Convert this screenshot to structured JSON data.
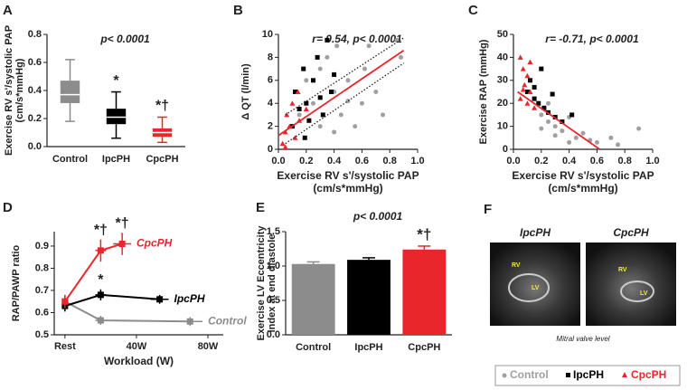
{
  "chart_data": [
    {
      "type": "box",
      "panel_label": "A",
      "annotation": "p< 0.0001",
      "y_label": [
        "Exercise RV s'/systolic PAP",
        "(cm/s*mmHg)"
      ],
      "categories": [
        "Control",
        "IpcPH",
        "CpcPH"
      ],
      "ylim": [
        0,
        0.8
      ],
      "yticks": [
        {
          "value": 0,
          "label": "0.0"
        },
        0.2,
        0.4,
        0.6,
        0.8
      ],
      "series": [
        {
          "name": "Control",
          "color": "#8c8c8c",
          "whisker_low": 0.18,
          "q1": 0.31,
          "median": 0.37,
          "q3": 0.47,
          "whisker_high": 0.62
        },
        {
          "name": "IpcPH",
          "color": "#000000",
          "whisker_low": 0.06,
          "q1": 0.16,
          "median": 0.21,
          "q3": 0.27,
          "whisker_high": 0.39,
          "significance": "*"
        },
        {
          "name": "CpcPH",
          "color": "#e8262b",
          "whisker_low": 0.03,
          "q1": 0.07,
          "median": 0.1,
          "q3": 0.13,
          "whisker_high": 0.21,
          "significance": "*†"
        }
      ]
    },
    {
      "type": "scatter",
      "panel_label": "B",
      "annotation": "r= 0.54, p< 0.0001",
      "y_label": [
        "Δ QT (l/min)"
      ],
      "x_label": [
        "Exercise RV s'/systolic PAP",
        "(cm/s*mmHg)"
      ],
      "xlim": [
        0,
        1
      ],
      "xticks": [
        {
          "value": 0,
          "label": "0.0"
        },
        0.2,
        0.4,
        0.6,
        0.8,
        {
          "value": 1,
          "label": "1.0"
        }
      ],
      "ylim": [
        0,
        10
      ],
      "yticks": [
        0,
        2,
        4,
        6,
        8,
        10
      ],
      "series": [
        {
          "name": "Control",
          "color": "#a0a0a0",
          "marker": "circle",
          "x": [
            0.15,
            0.2,
            0.25,
            0.3,
            0.35,
            0.4,
            0.42,
            0.45,
            0.5,
            0.55,
            0.6,
            0.62,
            0.7,
            0.75,
            0.85,
            0.88,
            0.3,
            0.4,
            0.5,
            0.65
          ],
          "values": [
            3,
            6,
            4,
            7,
            8,
            5,
            9,
            3,
            6,
            2,
            4,
            7,
            5,
            3,
            9.5,
            8,
            2,
            1.5,
            4.2,
            9
          ]
        },
        {
          "name": "IpcPH",
          "color": "#000000",
          "marker": "square",
          "x": [
            0.1,
            0.12,
            0.15,
            0.18,
            0.2,
            0.22,
            0.25,
            0.28,
            0.3,
            0.32,
            0.35,
            0.38,
            0.4,
            0.19
          ],
          "values": [
            2,
            5,
            3.5,
            7,
            4,
            2.5,
            6,
            8,
            4.5,
            3,
            9.5,
            5,
            6.5,
            1
          ]
        },
        {
          "name": "CpcPH",
          "color": "#e8262b",
          "marker": "triangle",
          "x": [
            0.03,
            0.05,
            0.06,
            0.08,
            0.1,
            0.12,
            0.14,
            0.15,
            0.05,
            0.2
          ],
          "values": [
            0.5,
            1.5,
            3,
            2,
            4,
            1,
            5,
            2.5,
            0.2,
            3.5
          ]
        }
      ],
      "fit": {
        "color": "#e8262b",
        "x": [
          0,
          0.9
        ],
        "values": [
          1.2,
          8.6
        ]
      },
      "ci": [
        {
          "x": [
            0.05,
            0.9
          ],
          "values": [
            3,
            9.7
          ]
        },
        {
          "x": [
            0.05,
            0.9
          ],
          "values": [
            0.5,
            7.5
          ]
        }
      ]
    },
    {
      "type": "scatter",
      "panel_label": "C",
      "annotation": "r= -0.71, p< 0.0001",
      "y_label": [
        "Exercise RAP (mmHg)"
      ],
      "x_label": [
        "Exercise RV s'/systolic PAP",
        "(cm/s*mmHg)"
      ],
      "xlim": [
        0,
        1
      ],
      "xticks": [
        {
          "value": 0,
          "label": "0.0"
        },
        0.2,
        0.4,
        0.6,
        0.8,
        {
          "value": 1,
          "label": "1.0"
        }
      ],
      "ylim": [
        0,
        50
      ],
      "yticks": [
        0,
        10,
        20,
        30,
        40,
        50
      ],
      "series": [
        {
          "name": "Control",
          "color": "#a0a0a0",
          "marker": "circle",
          "x": [
            0.2,
            0.25,
            0.3,
            0.35,
            0.4,
            0.45,
            0.5,
            0.55,
            0.6,
            0.7,
            0.75,
            0.9,
            0.3,
            0.4,
            0.25,
            0.2
          ],
          "values": [
            15,
            12,
            10,
            8,
            14,
            5,
            7,
            4,
            3,
            5,
            2,
            9,
            6,
            3,
            20,
            9
          ]
        },
        {
          "name": "IpcPH",
          "color": "#000000",
          "marker": "square",
          "x": [
            0.1,
            0.12,
            0.15,
            0.18,
            0.2,
            0.22,
            0.25,
            0.28,
            0.3,
            0.35,
            0.15,
            0.42
          ],
          "values": [
            25,
            30,
            22,
            20,
            35,
            18,
            16,
            24,
            14,
            12,
            27,
            15
          ]
        },
        {
          "name": "CpcPH",
          "color": "#e8262b",
          "marker": "triangle",
          "x": [
            0.05,
            0.07,
            0.08,
            0.1,
            0.12,
            0.05,
            0.1,
            0.12,
            0.15,
            0.07
          ],
          "values": [
            40,
            35,
            28,
            32,
            25,
            22,
            20,
            38,
            18,
            26
          ]
        }
      ],
      "fit": {
        "color": "#e8262b",
        "x": [
          0.03,
          0.62
        ],
        "values": [
          25,
          0
        ]
      }
    },
    {
      "type": "errorline",
      "panel_label": "D",
      "y_label": [
        "RAP/PAWP ratio"
      ],
      "x_label": [
        "Workload (W)"
      ],
      "xlim": [
        -6,
        88.6
      ],
      "xticks": [
        {
          "value": 0,
          "label": "Rest"
        },
        {
          "value": 40,
          "label": "40W"
        },
        {
          "value": 80,
          "label": "80W"
        }
      ],
      "ylim": [
        0.5,
        0.965
      ],
      "yticks": [
        0.5,
        0.6,
        0.7,
        0.8,
        0.9
      ],
      "series": [
        {
          "name": "Control",
          "color": "#8c8c8c",
          "x": [
            0,
            20,
            70
          ],
          "x_errors": [
            0,
            3,
            7
          ],
          "values": [
            0.65,
            0.565,
            0.56
          ],
          "errors": [
            0.03,
            0.02,
            0.02
          ],
          "significance": [
            null,
            null,
            null
          ]
        },
        {
          "name": "IpcPH",
          "color": "#000000",
          "x": [
            0,
            20,
            53
          ],
          "x_errors": [
            0,
            3,
            5
          ],
          "values": [
            0.63,
            0.68,
            0.66
          ],
          "errors": [
            0.025,
            0.025,
            0.02
          ],
          "significance": [
            null,
            "*",
            null
          ]
        },
        {
          "name": "CpcPH",
          "color": "#e8262b",
          "x": [
            0,
            20,
            32
          ],
          "x_errors": [
            0,
            3,
            5
          ],
          "values": [
            0.65,
            0.88,
            0.91
          ],
          "errors": [
            0.03,
            0.05,
            0.05
          ],
          "significance": [
            null,
            "*†",
            "*†"
          ]
        }
      ]
    },
    {
      "type": "bar",
      "panel_label": "E",
      "annotation": "p< 0.0001",
      "y_label": [
        "Exercise LV Eccentricity",
        "index at end diastole"
      ],
      "categories": [
        "Control",
        "IpcPH",
        "CpcPH"
      ],
      "ylim": [
        0,
        1.5
      ],
      "yticks": [
        {
          "value": 0,
          "label": "0.0"
        },
        0.5,
        {
          "value": 1,
          "label": "1.0"
        },
        1.5
      ],
      "colors": [
        "#8c8c8c",
        "#000000",
        "#e8262b"
      ],
      "values": [
        1.03,
        1.09,
        1.24
      ],
      "errors": [
        0.03,
        0.03,
        0.05
      ],
      "significance": [
        null,
        null,
        "*†"
      ]
    }
  ],
  "figure_f": {
    "panel_label": "F",
    "images": [
      {
        "title": "IpcPH",
        "labels": [
          "RV",
          "LV"
        ]
      },
      {
        "title": "CpcPH",
        "labels": [
          "RV",
          "LV"
        ]
      }
    ],
    "caption": "Mitral valve level"
  },
  "legend": {
    "entries": [
      {
        "name": "Control",
        "color": "#a0a0a0"
      },
      {
        "name": "IpcPH",
        "color": "#000000"
      },
      {
        "name": "CpcPH",
        "color": "#e8262b"
      }
    ]
  }
}
